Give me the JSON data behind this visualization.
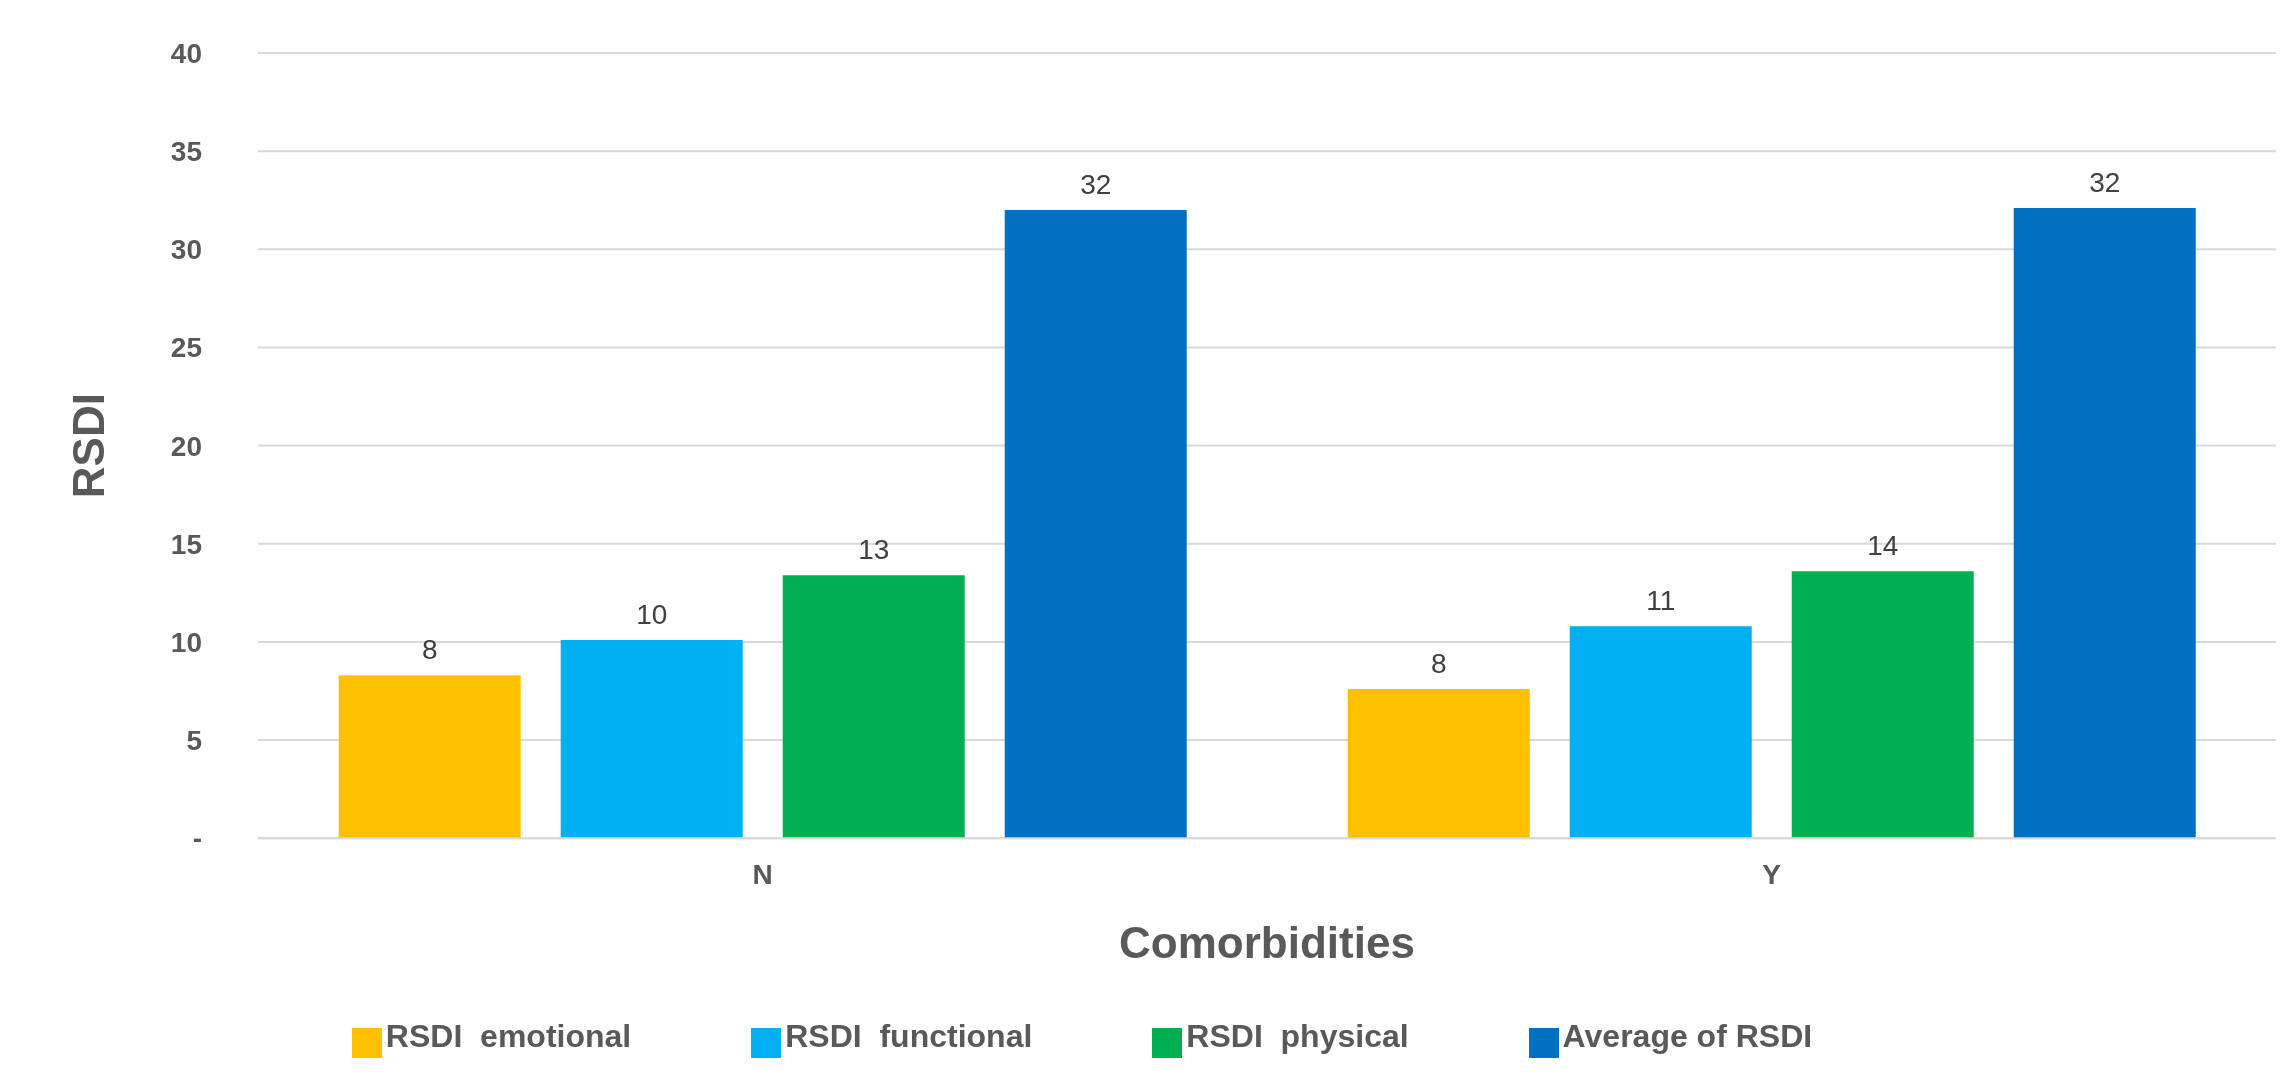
{
  "chart_data": {
    "type": "bar",
    "xlabel": "Comorbidities",
    "ylabel": "RSDI",
    "categories": [
      "N",
      "Y"
    ],
    "series": [
      {
        "name": "RSDI  emotional",
        "color": "#ffc000",
        "values": [
          8.3,
          7.6
        ],
        "value_labels": [
          "8",
          "8"
        ]
      },
      {
        "name": "RSDI  functional",
        "color": "#00b0f0",
        "values": [
          10.1,
          10.8
        ],
        "value_labels": [
          "10",
          "11"
        ]
      },
      {
        "name": "RSDI  physical",
        "color": "#00b050",
        "values": [
          13.4,
          13.6
        ],
        "value_labels": [
          "13",
          "14"
        ]
      },
      {
        "name": "Average of RSDI",
        "color": "#0070c0",
        "values": [
          32.0,
          32.1
        ],
        "value_labels": [
          "32",
          "32"
        ]
      }
    ],
    "ylim": [
      0,
      40
    ],
    "yticks": [
      {
        "value": 0,
        "label": "-"
      },
      5,
      10,
      15,
      20,
      25,
      30,
      35,
      40
    ],
    "grid": "y",
    "legend": "bottom"
  }
}
